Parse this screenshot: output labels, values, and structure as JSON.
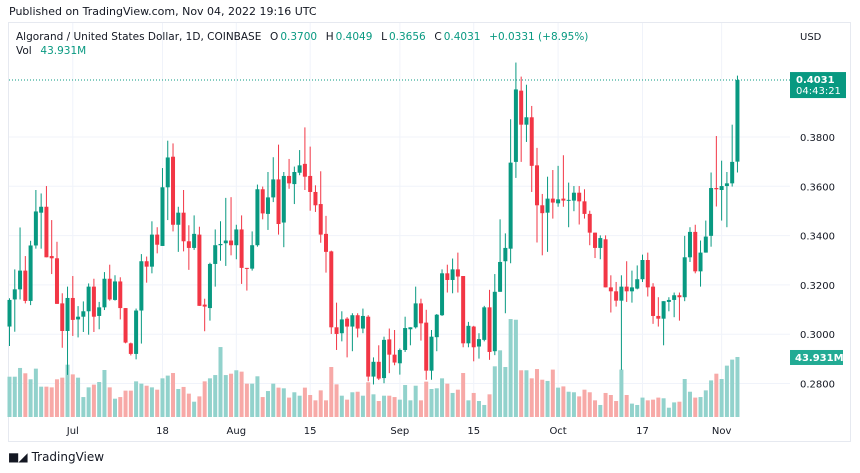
{
  "published": "Published on TradingView.com, Nov 04, 2022 19:16 UTC",
  "legend": {
    "symbol": "Algorand / United States Dollar, 1D, COINBASE",
    "o_label": "O",
    "o": "0.3700",
    "h_label": "H",
    "h": "0.4049",
    "l_label": "L",
    "l": "0.3656",
    "c_label": "C",
    "c": "0.4031",
    "change": "+0.0331 (+8.95%)",
    "vol_label": "Vol",
    "vol": "43.931M"
  },
  "price_axis": {
    "currency": "USD",
    "last_price": "0.4031",
    "countdown": "04:43:21",
    "last_volume": "43.931M"
  },
  "brand": "TradingView",
  "colors": {
    "up": "#089981",
    "down": "#f23645",
    "vol_up": "#92d2cc",
    "vol_down": "#f7a9a7",
    "grid": "#f0f3fa"
  },
  "chart_data": {
    "type": "candlestick",
    "title": "Algorand / United States Dollar, 1D, COINBASE",
    "ylabel": "USD",
    "ylim": [
      0.2725,
      0.417
    ],
    "y_ticks": [
      "0.2800",
      "0.3000",
      "0.3200",
      "0.3400",
      "0.3600",
      "0.3800"
    ],
    "x_ticks": [
      {
        "label": "Jul",
        "date": "2022-07-01"
      },
      {
        "label": "18",
        "date": "2022-07-18"
      },
      {
        "label": "Aug",
        "date": "2022-08-01"
      },
      {
        "label": "15",
        "date": "2022-08-15"
      },
      {
        "label": "Sep",
        "date": "2022-09-01"
      },
      {
        "label": "15",
        "date": "2022-09-15"
      },
      {
        "label": "Oct",
        "date": "2022-10-01"
      },
      {
        "label": "17",
        "date": "2022-10-17"
      },
      {
        "label": "Nov",
        "date": "2022-11-01"
      }
    ],
    "grid": true,
    "columns": [
      "date",
      "open",
      "high",
      "low",
      "close",
      "volume_M"
    ],
    "candles": [
      [
        "2022-06-19",
        0.3031,
        0.3146,
        0.2952,
        0.3139,
        29.5
      ],
      [
        "2022-06-20",
        0.3141,
        0.3263,
        0.301,
        0.3182,
        29.5
      ],
      [
        "2022-06-21",
        0.3182,
        0.3433,
        0.3141,
        0.3258,
        35.9
      ],
      [
        "2022-06-22",
        0.3258,
        0.3317,
        0.3125,
        0.3135,
        32.0
      ],
      [
        "2022-06-23",
        0.3135,
        0.3379,
        0.3118,
        0.336,
        27.6
      ],
      [
        "2022-06-24",
        0.336,
        0.3585,
        0.3347,
        0.3498,
        35.4
      ],
      [
        "2022-06-25",
        0.3493,
        0.3571,
        0.3347,
        0.3517,
        22.2
      ],
      [
        "2022-06-26",
        0.3517,
        0.3601,
        0.3312,
        0.3312,
        22.2
      ],
      [
        "2022-06-27",
        0.3317,
        0.3463,
        0.3244,
        0.3308,
        21.7
      ],
      [
        "2022-06-28",
        0.3308,
        0.3375,
        0.3123,
        0.3123,
        27.6
      ],
      [
        "2022-06-29",
        0.3125,
        0.3166,
        0.2945,
        0.3013,
        28.8
      ],
      [
        "2022-06-30",
        0.3013,
        0.3193,
        0.2835,
        0.3147,
        38.3
      ],
      [
        "2022-07-01",
        0.3147,
        0.3236,
        0.2993,
        0.3058,
        31.2
      ],
      [
        "2022-07-02",
        0.306,
        0.3114,
        0.2987,
        0.3071,
        28.8
      ],
      [
        "2022-07-03",
        0.3071,
        0.3133,
        0.3009,
        0.3093,
        14.6
      ],
      [
        "2022-07-04",
        0.3093,
        0.3206,
        0.2998,
        0.3193,
        21.7
      ],
      [
        "2022-07-05",
        0.3193,
        0.3225,
        0.3009,
        0.3071,
        23.7
      ],
      [
        "2022-07-06",
        0.3074,
        0.3131,
        0.302,
        0.3109,
        25.6
      ],
      [
        "2022-07-07",
        0.3109,
        0.3252,
        0.3098,
        0.3225,
        34.4
      ],
      [
        "2022-07-08",
        0.3225,
        0.3282,
        0.3136,
        0.3141,
        21.7
      ],
      [
        "2022-07-09",
        0.3139,
        0.3239,
        0.3136,
        0.3214,
        13.4
      ],
      [
        "2022-07-10",
        0.3214,
        0.3231,
        0.306,
        0.3106,
        14.6
      ],
      [
        "2022-07-11",
        0.3106,
        0.3106,
        0.2963,
        0.2966,
        19.3
      ],
      [
        "2022-07-12",
        0.2963,
        0.2966,
        0.2914,
        0.292,
        19.3
      ],
      [
        "2022-07-13",
        0.292,
        0.3104,
        0.2898,
        0.3096,
        26.1
      ],
      [
        "2022-07-14",
        0.3096,
        0.3325,
        0.2962,
        0.3296,
        24.4
      ],
      [
        "2022-07-15",
        0.3296,
        0.3315,
        0.3209,
        0.3274,
        22.9
      ],
      [
        "2022-07-16",
        0.3274,
        0.3458,
        0.3247,
        0.3404,
        21.7
      ],
      [
        "2022-07-17",
        0.3404,
        0.3434,
        0.3328,
        0.3363,
        20.0
      ],
      [
        "2022-07-18",
        0.3358,
        0.3674,
        0.3358,
        0.3596,
        28.3
      ],
      [
        "2022-07-19",
        0.3596,
        0.3785,
        0.3463,
        0.3717,
        30.3
      ],
      [
        "2022-07-20",
        0.372,
        0.3774,
        0.3417,
        0.3444,
        32.2
      ],
      [
        "2022-07-21",
        0.3444,
        0.3517,
        0.3334,
        0.3493,
        20.5
      ],
      [
        "2022-07-22",
        0.3493,
        0.3585,
        0.3336,
        0.3377,
        22.0
      ],
      [
        "2022-07-23",
        0.3377,
        0.3442,
        0.3261,
        0.335,
        17.1
      ],
      [
        "2022-07-24",
        0.335,
        0.3482,
        0.3342,
        0.3407,
        11.2
      ],
      [
        "2022-07-25",
        0.3404,
        0.3436,
        0.3115,
        0.3115,
        15.1
      ],
      [
        "2022-07-26",
        0.312,
        0.3144,
        0.3012,
        0.3112,
        26.1
      ],
      [
        "2022-07-27",
        0.3106,
        0.329,
        0.3055,
        0.3285,
        28.3
      ],
      [
        "2022-07-28",
        0.3285,
        0.3425,
        0.3193,
        0.3361,
        30.7
      ],
      [
        "2022-07-29",
        0.3361,
        0.3458,
        0.3298,
        0.3366,
        51.2
      ],
      [
        "2022-07-30",
        0.3369,
        0.3553,
        0.3277,
        0.338,
        30.7
      ],
      [
        "2022-07-31",
        0.338,
        0.3556,
        0.332,
        0.3361,
        31.7
      ],
      [
        "2022-08-01",
        0.3361,
        0.3444,
        0.3304,
        0.3425,
        34.2
      ],
      [
        "2022-08-02",
        0.3425,
        0.3482,
        0.3204,
        0.3269,
        33.2
      ],
      [
        "2022-08-03",
        0.3269,
        0.3269,
        0.3177,
        0.3266,
        24.4
      ],
      [
        "2022-08-04",
        0.3266,
        0.3417,
        0.3258,
        0.3361,
        24.4
      ],
      [
        "2022-08-05",
        0.3361,
        0.3607,
        0.3355,
        0.3588,
        29.8
      ],
      [
        "2022-08-06",
        0.3588,
        0.3599,
        0.3466,
        0.349,
        14.6
      ],
      [
        "2022-08-07",
        0.3488,
        0.3658,
        0.3423,
        0.3555,
        19.0
      ],
      [
        "2022-08-08",
        0.3555,
        0.3718,
        0.3536,
        0.3628,
        24.4
      ],
      [
        "2022-08-09",
        0.3628,
        0.3769,
        0.3404,
        0.3447,
        21.5
      ],
      [
        "2022-08-10",
        0.3453,
        0.3658,
        0.3353,
        0.3642,
        21.0
      ],
      [
        "2022-08-11",
        0.3642,
        0.3711,
        0.359,
        0.3612,
        14.2
      ],
      [
        "2022-08-12",
        0.3609,
        0.368,
        0.3528,
        0.3658,
        18.1
      ],
      [
        "2022-08-13",
        0.3655,
        0.3747,
        0.3645,
        0.3685,
        15.6
      ],
      [
        "2022-08-14",
        0.3691,
        0.3839,
        0.3585,
        0.3639,
        21.5
      ],
      [
        "2022-08-15",
        0.3642,
        0.3761,
        0.3501,
        0.3577,
        16.1
      ],
      [
        "2022-08-16",
        0.3577,
        0.3604,
        0.3496,
        0.3523,
        12.2
      ],
      [
        "2022-08-17",
        0.3528,
        0.3661,
        0.3371,
        0.3404,
        19.5
      ],
      [
        "2022-08-18",
        0.3407,
        0.348,
        0.325,
        0.3334,
        12.2
      ],
      [
        "2022-08-19",
        0.3336,
        0.3339,
        0.3001,
        0.3028,
        36.6
      ],
      [
        "2022-08-20",
        0.3028,
        0.3128,
        0.2936,
        0.3001,
        23.9
      ],
      [
        "2022-08-21",
        0.3004,
        0.3093,
        0.2971,
        0.306,
        15.6
      ],
      [
        "2022-08-22",
        0.3063,
        0.3069,
        0.2906,
        0.3031,
        12.7
      ],
      [
        "2022-08-23",
        0.3031,
        0.3085,
        0.2931,
        0.3077,
        18.1
      ],
      [
        "2022-08-24",
        0.3077,
        0.3085,
        0.2987,
        0.3023,
        18.5
      ],
      [
        "2022-08-25",
        0.3023,
        0.3104,
        0.3004,
        0.3074,
        15.6
      ],
      [
        "2022-08-26",
        0.3071,
        0.3077,
        0.2809,
        0.2828,
        25.4
      ],
      [
        "2022-08-27",
        0.2828,
        0.2906,
        0.2796,
        0.2888,
        16.6
      ],
      [
        "2022-08-28",
        0.2888,
        0.2955,
        0.2814,
        0.282,
        11.7
      ],
      [
        "2022-08-29",
        0.2822,
        0.299,
        0.2801,
        0.2977,
        15.6
      ],
      [
        "2022-08-30",
        0.2979,
        0.3023,
        0.2842,
        0.2917,
        15.6
      ],
      [
        "2022-08-31",
        0.2917,
        0.3017,
        0.2874,
        0.2885,
        14.6
      ],
      [
        "2022-09-01",
        0.2882,
        0.2942,
        0.2836,
        0.2936,
        12.7
      ],
      [
        "2022-09-02",
        0.2936,
        0.3071,
        0.2928,
        0.3025,
        23.4
      ],
      [
        "2022-09-03",
        0.302,
        0.3028,
        0.2955,
        0.3028,
        12.2
      ],
      [
        "2022-09-04",
        0.3028,
        0.3193,
        0.3023,
        0.3125,
        22.9
      ],
      [
        "2022-09-05",
        0.3125,
        0.3144,
        0.2974,
        0.3044,
        12.2
      ],
      [
        "2022-09-06",
        0.3047,
        0.3099,
        0.2815,
        0.2852,
        25.9
      ],
      [
        "2022-09-07",
        0.2852,
        0.3017,
        0.2815,
        0.299,
        20.5
      ],
      [
        "2022-09-08",
        0.2988,
        0.3082,
        0.2931,
        0.3079,
        21.0
      ],
      [
        "2022-09-09",
        0.3077,
        0.3263,
        0.3074,
        0.3247,
        28.3
      ],
      [
        "2022-09-10",
        0.3247,
        0.3282,
        0.3169,
        0.322,
        24.4
      ],
      [
        "2022-09-11",
        0.322,
        0.3307,
        0.3166,
        0.3263,
        17.6
      ],
      [
        "2022-09-12",
        0.3263,
        0.3331,
        0.3169,
        0.3234,
        20.0
      ],
      [
        "2022-09-13",
        0.3236,
        0.3236,
        0.2947,
        0.2963,
        32.2
      ],
      [
        "2022-09-14",
        0.2963,
        0.305,
        0.2947,
        0.3034,
        12.2
      ],
      [
        "2022-09-15",
        0.3031,
        0.3034,
        0.289,
        0.2947,
        17.6
      ],
      [
        "2022-09-16",
        0.295,
        0.3004,
        0.2901,
        0.298,
        11.7
      ],
      [
        "2022-09-17",
        0.2977,
        0.3115,
        0.2971,
        0.3109,
        8.8
      ],
      [
        "2022-09-18",
        0.3109,
        0.318,
        0.2896,
        0.2928,
        16.6
      ],
      [
        "2022-09-19",
        0.2931,
        0.3244,
        0.2915,
        0.3172,
        37.1
      ],
      [
        "2022-09-20",
        0.3172,
        0.3466,
        0.3172,
        0.3293,
        48.8
      ],
      [
        "2022-09-21",
        0.3296,
        0.3409,
        0.3085,
        0.335,
        36.6
      ],
      [
        "2022-09-22",
        0.3347,
        0.3872,
        0.3288,
        0.3696,
        71.7
      ],
      [
        "2022-09-23",
        0.3699,
        0.4102,
        0.3634,
        0.3993,
        71.2
      ],
      [
        "2022-09-24",
        0.3988,
        0.4045,
        0.3699,
        0.385,
        34.2
      ],
      [
        "2022-09-25",
        0.385,
        0.4012,
        0.378,
        0.388,
        34.2
      ],
      [
        "2022-09-26",
        0.388,
        0.3926,
        0.3577,
        0.3683,
        28.3
      ],
      [
        "2022-09-27",
        0.3685,
        0.3756,
        0.3372,
        0.3523,
        35.1
      ],
      [
        "2022-09-28",
        0.3523,
        0.3569,
        0.332,
        0.3491,
        27.3
      ],
      [
        "2022-09-29",
        0.3493,
        0.3639,
        0.3334,
        0.355,
        26.4
      ],
      [
        "2022-09-30",
        0.355,
        0.3666,
        0.3469,
        0.3534,
        34.7
      ],
      [
        "2022-10-01",
        0.3531,
        0.3683,
        0.3517,
        0.3547,
        21.5
      ],
      [
        "2022-10-02",
        0.355,
        0.3726,
        0.3517,
        0.3542,
        22.4
      ],
      [
        "2022-10-03",
        0.3542,
        0.3615,
        0.3434,
        0.3545,
        18.5
      ],
      [
        "2022-10-04",
        0.3542,
        0.3601,
        0.3499,
        0.3574,
        18.1
      ],
      [
        "2022-10-05",
        0.3574,
        0.3601,
        0.3445,
        0.3539,
        15.1
      ],
      [
        "2022-10-06",
        0.3539,
        0.3588,
        0.3469,
        0.3488,
        20.0
      ],
      [
        "2022-10-07",
        0.3488,
        0.3501,
        0.3361,
        0.3412,
        18.1
      ],
      [
        "2022-10-08",
        0.3412,
        0.3412,
        0.3309,
        0.335,
        12.2
      ],
      [
        "2022-10-09",
        0.335,
        0.3401,
        0.3304,
        0.339,
        8.8
      ],
      [
        "2022-10-10",
        0.3385,
        0.3401,
        0.319,
        0.319,
        17.6
      ],
      [
        "2022-10-11",
        0.319,
        0.3239,
        0.3088,
        0.3174,
        16.1
      ],
      [
        "2022-10-12",
        0.3174,
        0.3212,
        0.3112,
        0.3136,
        11.7
      ],
      [
        "2022-10-13",
        0.3136,
        0.3239,
        0.2855,
        0.3193,
        34.7
      ],
      [
        "2022-10-14",
        0.3193,
        0.3296,
        0.3131,
        0.3174,
        16.1
      ],
      [
        "2022-10-15",
        0.3174,
        0.3258,
        0.3128,
        0.319,
        9.8
      ],
      [
        "2022-10-16",
        0.3185,
        0.3279,
        0.3182,
        0.3223,
        8.8
      ],
      [
        "2022-10-17",
        0.3223,
        0.3323,
        0.3212,
        0.3301,
        14.2
      ],
      [
        "2022-10-18",
        0.3301,
        0.3331,
        0.3153,
        0.319,
        12.2
      ],
      [
        "2022-10-19",
        0.3193,
        0.3207,
        0.3042,
        0.3074,
        12.7
      ],
      [
        "2022-10-20",
        0.3074,
        0.315,
        0.3031,
        0.3063,
        14.2
      ],
      [
        "2022-10-21",
        0.3063,
        0.3134,
        0.2955,
        0.3134,
        13.7
      ],
      [
        "2022-10-22",
        0.3131,
        0.315,
        0.3093,
        0.3139,
        6.8
      ],
      [
        "2022-10-23",
        0.3139,
        0.3169,
        0.3069,
        0.3158,
        10.7
      ],
      [
        "2022-10-24",
        0.3158,
        0.3169,
        0.3055,
        0.315,
        11.2
      ],
      [
        "2022-10-25",
        0.315,
        0.3399,
        0.3134,
        0.3312,
        27.8
      ],
      [
        "2022-10-26",
        0.3312,
        0.3434,
        0.3293,
        0.3415,
        18.5
      ],
      [
        "2022-10-27",
        0.3415,
        0.3444,
        0.3247,
        0.3255,
        14.2
      ],
      [
        "2022-10-28",
        0.3255,
        0.338,
        0.3193,
        0.3331,
        14.6
      ],
      [
        "2022-10-29",
        0.3331,
        0.3461,
        0.3331,
        0.3396,
        19.5
      ],
      [
        "2022-10-30",
        0.3399,
        0.3656,
        0.3355,
        0.3593,
        26.8
      ],
      [
        "2022-10-31",
        0.3593,
        0.3804,
        0.3518,
        0.3588,
        31.7
      ],
      [
        "2022-11-01",
        0.3585,
        0.3704,
        0.3461,
        0.3601,
        27.8
      ],
      [
        "2022-11-02",
        0.3601,
        0.3658,
        0.3434,
        0.3612,
        37.6
      ],
      [
        "2022-11-03",
        0.3612,
        0.385,
        0.3599,
        0.3699,
        42.0
      ],
      [
        "2022-11-04",
        0.37,
        0.4049,
        0.3656,
        0.4031,
        43.931
      ]
    ]
  }
}
